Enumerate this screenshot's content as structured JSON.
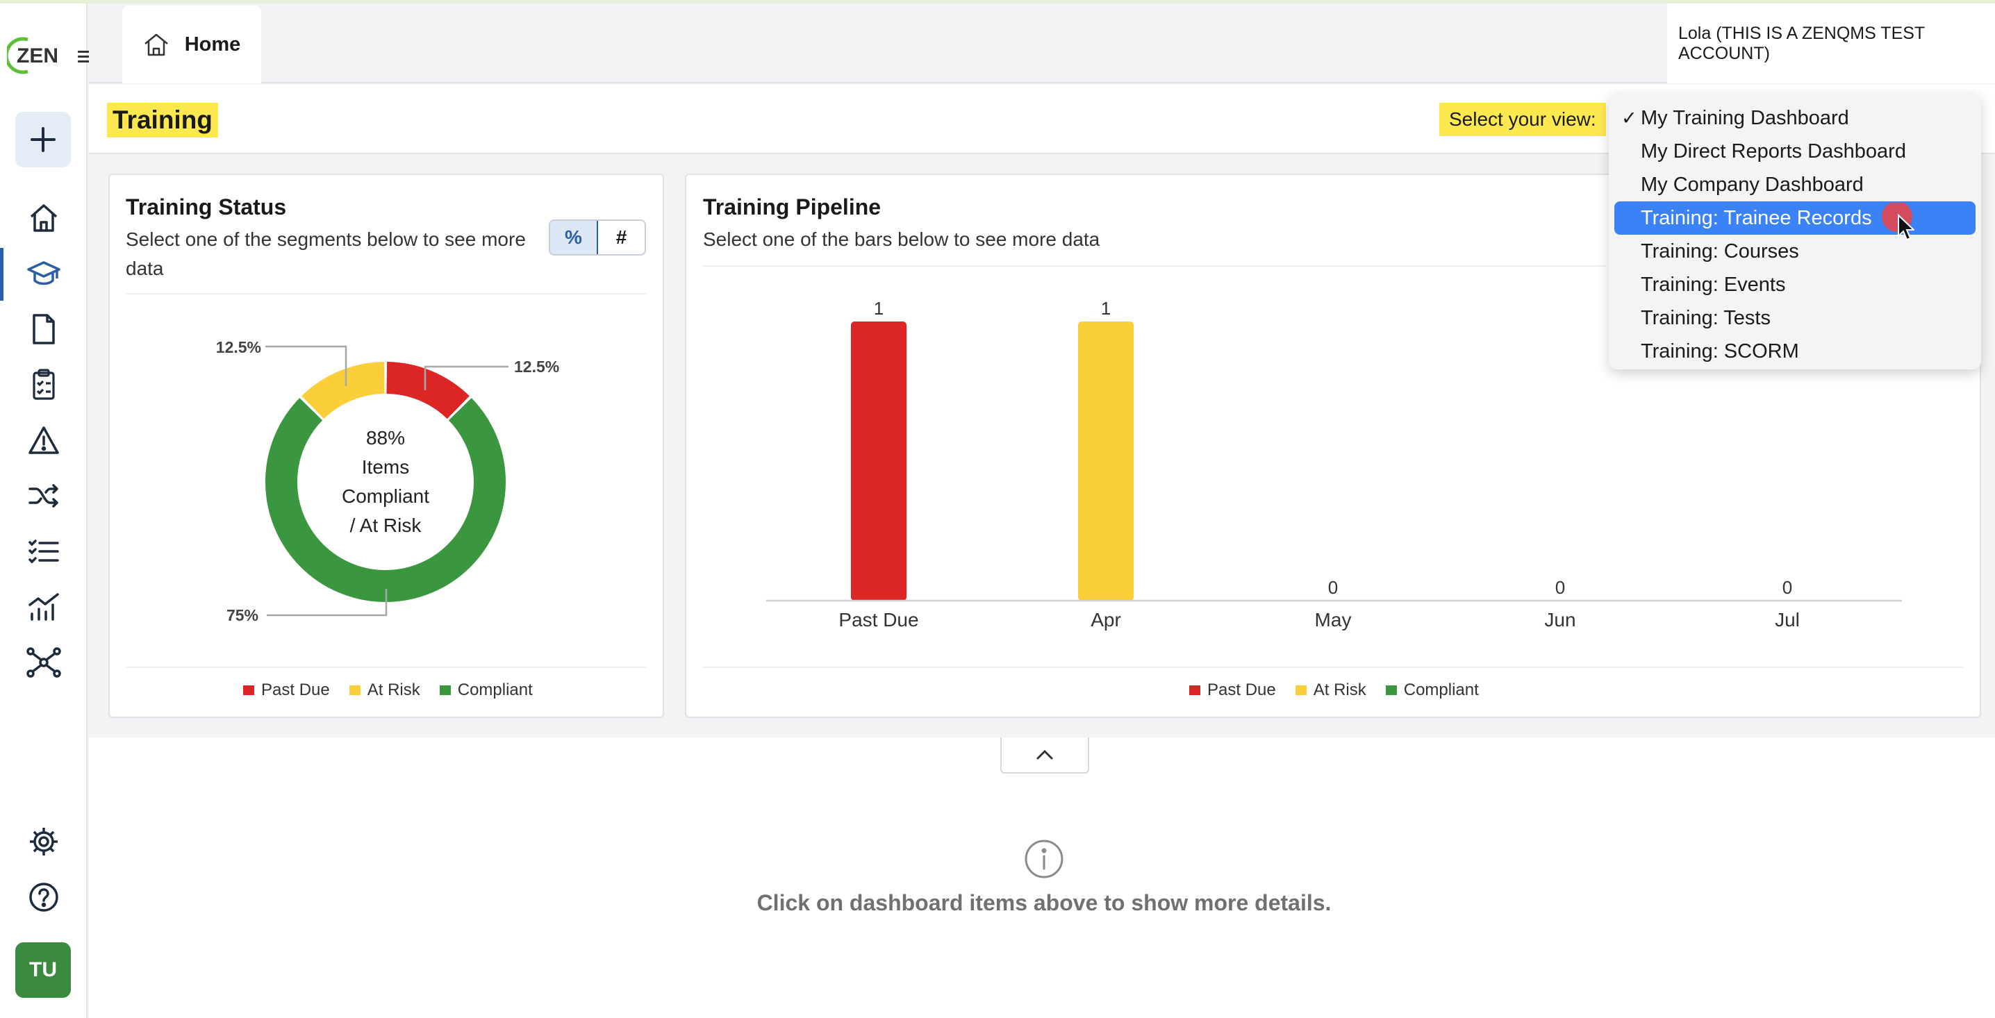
{
  "app": {
    "logo_text": "ZEN"
  },
  "header": {
    "home_tab_label": "Home",
    "account_label": "Lola (THIS IS A ZENQMS TEST ACCOUNT)"
  },
  "sidebar": {
    "items": [
      {
        "icon": "home-icon"
      },
      {
        "icon": "graduation-cap-icon",
        "active": true
      },
      {
        "icon": "document-icon"
      },
      {
        "icon": "clipboard-checklist-icon"
      },
      {
        "icon": "warning-icon"
      },
      {
        "icon": "shuffle-icon"
      },
      {
        "icon": "task-list-icon"
      },
      {
        "icon": "analytics-icon"
      },
      {
        "icon": "network-icon"
      },
      {
        "icon": "gear-icon"
      },
      {
        "icon": "help-icon"
      }
    ],
    "avatar_initials": "TU"
  },
  "page": {
    "title": "Training",
    "select_view_label": "Select your view:"
  },
  "view_dropdown": {
    "options": [
      "My Training Dashboard",
      "My Direct Reports Dashboard",
      "My Company Dashboard",
      "Training: Trainee Records",
      "Training: Courses",
      "Training: Events",
      "Training: Tests",
      "Training: SCORM"
    ],
    "checked_index": 0,
    "highlighted_index": 3,
    "check_mark": "✓"
  },
  "training_status": {
    "title": "Training Status",
    "subtitle_line1": "Select one of the segments below to see more",
    "subtitle_line2": "data",
    "toggle_percent": "%",
    "toggle_count": "#",
    "center_lines": [
      "88%",
      "Items",
      "Compliant",
      "/ At Risk"
    ],
    "legend": [
      "Past Due",
      "At Risk",
      "Compliant"
    ]
  },
  "training_pipeline": {
    "title": "Training Pipeline",
    "subtitle": "Select one of the bars below to see more data",
    "legend": [
      "Past Due",
      "At Risk",
      "Compliant"
    ]
  },
  "colors": {
    "past_due": "#dc2626",
    "at_risk": "#fbcf3a",
    "compliant": "#3a9740",
    "highlight": "#fde94f",
    "selected": "#3b82f6"
  },
  "detail_area": {
    "message": "Click on dashboard items above to show more details."
  },
  "chart_data": [
    {
      "type": "pie",
      "title": "Training Status",
      "labels": [
        "Past Due",
        "At Risk",
        "Compliant"
      ],
      "values": [
        12.5,
        12.5,
        75
      ],
      "value_labels": [
        "12.5%",
        "12.5%",
        "75%"
      ],
      "donut": true,
      "legend": "bottom"
    },
    {
      "type": "bar",
      "title": "Training Pipeline",
      "categories": [
        "Past Due",
        "Apr",
        "May",
        "Jun",
        "Jul"
      ],
      "values": [
        1,
        1,
        0,
        0,
        0
      ],
      "bar_colors": [
        "#dc2626",
        "#fbcf3a",
        "#3a9740",
        "#3a9740",
        "#3a9740"
      ],
      "legend": "bottom"
    }
  ]
}
